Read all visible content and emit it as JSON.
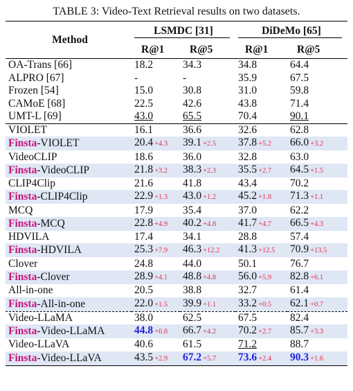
{
  "title": "TABLE 3: Video-Text Retrieval results on two datasets.",
  "header": {
    "method": "Method",
    "groups": [
      {
        "name": "LSMDC [31]",
        "columns": [
          "R@1",
          "R@5"
        ]
      },
      {
        "name": "DiDeMo [65]",
        "columns": [
          "R@1",
          "R@5"
        ]
      }
    ]
  },
  "sections": [
    {
      "top_rule": "solid",
      "rows": [
        {
          "method": "OA-Trans [66]",
          "cells": [
            {
              "value": "18.2"
            },
            {
              "value": "34.3"
            },
            {
              "value": "34.8"
            },
            {
              "value": "64.4"
            }
          ]
        },
        {
          "method": "ALPRO [67]",
          "cells": [
            {
              "value": "-"
            },
            {
              "value": "-"
            },
            {
              "value": "35.9"
            },
            {
              "value": "67.5"
            }
          ]
        },
        {
          "method": "Frozen [54]",
          "cells": [
            {
              "value": "15.0"
            },
            {
              "value": "30.8"
            },
            {
              "value": "31.0"
            },
            {
              "value": "59.8"
            }
          ]
        },
        {
          "method": "CAMoE [68]",
          "cells": [
            {
              "value": "22.5"
            },
            {
              "value": "42.6"
            },
            {
              "value": "43.8"
            },
            {
              "value": "71.4"
            }
          ]
        },
        {
          "method": "UMT-L [69]",
          "cells": [
            {
              "value": "43.0",
              "style": "underline"
            },
            {
              "value": "65.5",
              "style": "underline"
            },
            {
              "value": "70.4"
            },
            {
              "value": "90.1",
              "style": "underline"
            }
          ]
        }
      ]
    },
    {
      "top_rule": "solid",
      "rows": [
        {
          "method": "VIOLET",
          "cells": [
            {
              "value": "16.1"
            },
            {
              "value": "36.6"
            },
            {
              "value": "32.6"
            },
            {
              "value": "62.8"
            }
          ]
        },
        {
          "prefix": "Finsta",
          "method": "-VIOLET",
          "cells": [
            {
              "value": "20.4",
              "delta": "+4.3"
            },
            {
              "value": "39.1",
              "delta": "+2.5"
            },
            {
              "value": "37.8",
              "delta": "+5.2"
            },
            {
              "value": "66.0",
              "delta": "+3.2"
            }
          ]
        },
        {
          "method": "VideoCLIP",
          "cells": [
            {
              "value": "18.6"
            },
            {
              "value": "36.0"
            },
            {
              "value": "32.8"
            },
            {
              "value": "63.0"
            }
          ]
        },
        {
          "prefix": "Finsta",
          "method": "-VideoCLIP",
          "cells": [
            {
              "value": "21.8",
              "delta": "+3.2"
            },
            {
              "value": "38.3",
              "delta": "+2.3"
            },
            {
              "value": "35.5",
              "delta": "+2.7"
            },
            {
              "value": "64.5",
              "delta": "+1.5"
            }
          ]
        },
        {
          "method": "CLIP4Clip",
          "cells": [
            {
              "value": "21.6"
            },
            {
              "value": "41.8"
            },
            {
              "value": "43.4"
            },
            {
              "value": "70.2"
            }
          ]
        },
        {
          "prefix": "Finsta",
          "method": "-CLIP4Clip",
          "cells": [
            {
              "value": "22.9",
              "delta": "+1.3"
            },
            {
              "value": "43.0",
              "delta": "+1.2"
            },
            {
              "value": "45.2",
              "delta": "+1.8"
            },
            {
              "value": "71.3",
              "delta": "+1.1"
            }
          ]
        },
        {
          "method": "MCQ",
          "cells": [
            {
              "value": "17.9"
            },
            {
              "value": "35.4"
            },
            {
              "value": "37.0"
            },
            {
              "value": "62.2"
            }
          ]
        },
        {
          "prefix": "Finsta",
          "method": "-MCQ",
          "cells": [
            {
              "value": "22.8",
              "delta": "+4.9"
            },
            {
              "value": "40.2",
              "delta": "+4.8"
            },
            {
              "value": "41.7",
              "delta": "+4.7"
            },
            {
              "value": "66.5",
              "delta": "+4.3"
            }
          ]
        },
        {
          "method": "HDVILA",
          "cells": [
            {
              "value": "17.4"
            },
            {
              "value": "34.1"
            },
            {
              "value": "28.8"
            },
            {
              "value": "57.4"
            }
          ]
        },
        {
          "prefix": "Finsta",
          "method": "-HDVILA",
          "cells": [
            {
              "value": "25.3",
              "delta": "+7.9"
            },
            {
              "value": "46.3",
              "delta": "+12.2"
            },
            {
              "value": "41.3",
              "delta": "+12.5"
            },
            {
              "value": "70.9",
              "delta": "+13.5"
            }
          ]
        },
        {
          "method": "Clover",
          "cells": [
            {
              "value": "24.8"
            },
            {
              "value": "44.0"
            },
            {
              "value": "50.1"
            },
            {
              "value": "76.7"
            }
          ]
        },
        {
          "prefix": "Finsta",
          "method": "-Clover",
          "cells": [
            {
              "value": "28.9",
              "delta": "+4.1"
            },
            {
              "value": "48.8",
              "delta": "+4.8"
            },
            {
              "value": "56.0",
              "delta": "+5.9"
            },
            {
              "value": "82.8",
              "delta": "+6.1"
            }
          ]
        },
        {
          "method": "All-in-one",
          "cells": [
            {
              "value": "20.5"
            },
            {
              "value": "38.8"
            },
            {
              "value": "32.7"
            },
            {
              "value": "61.4"
            }
          ]
        },
        {
          "prefix": "Finsta",
          "method": "-All-in-one",
          "cells": [
            {
              "value": "22.0",
              "delta": "+1.5"
            },
            {
              "value": "39.9",
              "delta": "+1.1"
            },
            {
              "value": "33.2",
              "delta": "+0.5"
            },
            {
              "value": "62.1",
              "delta": "+0.7"
            }
          ]
        }
      ]
    },
    {
      "top_rule": "dashed",
      "rows": [
        {
          "method": "Video-LLaMA",
          "cells": [
            {
              "value": "38.0"
            },
            {
              "value": "62.5"
            },
            {
              "value": "67.5"
            },
            {
              "value": "82.4"
            }
          ]
        },
        {
          "prefix": "Finsta",
          "method": "-Video-LLaMA",
          "cells": [
            {
              "value": "44.8",
              "style": "bold",
              "delta": "+6.8"
            },
            {
              "value": "66.7",
              "delta": "+4.2"
            },
            {
              "value": "70.2",
              "delta": "+2.7"
            },
            {
              "value": "85.7",
              "delta": "+3.3"
            }
          ]
        },
        {
          "method": "Video-LLaVA",
          "cells": [
            {
              "value": "40.6"
            },
            {
              "value": "61.5"
            },
            {
              "value": "71.2",
              "style": "underline"
            },
            {
              "value": "88.7"
            }
          ]
        },
        {
          "prefix": "Finsta",
          "method": "-Video-LLaVA",
          "cells": [
            {
              "value": "43.5",
              "delta": "+2.9"
            },
            {
              "value": "67.2",
              "style": "bold",
              "delta": "+5.7"
            },
            {
              "value": "73.6",
              "style": "bold",
              "delta": "+2.4"
            },
            {
              "value": "90.3",
              "style": "bold",
              "delta": "+1.6"
            }
          ]
        }
      ]
    }
  ]
}
